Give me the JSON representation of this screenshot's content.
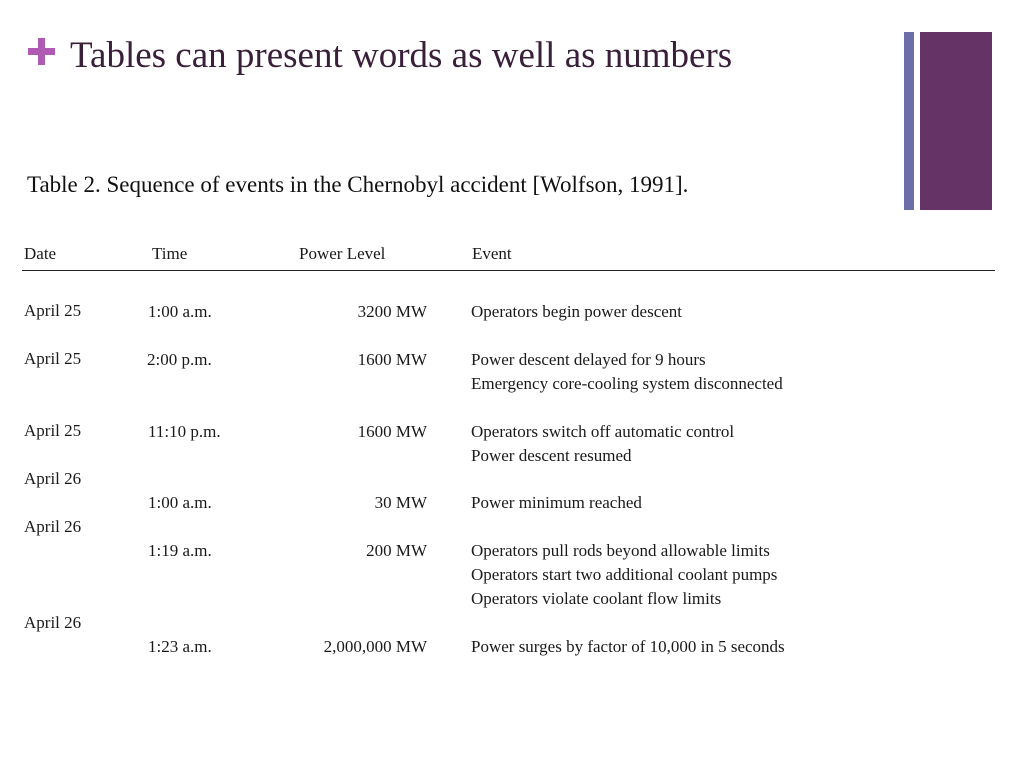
{
  "slide": {
    "title": "Tables can present words as well as numbers",
    "caption": "Table 2. Sequence of events in the Chernobyl accident [Wolfson, 1991]."
  },
  "table": {
    "headers": {
      "date": "Date",
      "time": "Time",
      "power": "Power Level",
      "event": "Event"
    },
    "cells": {
      "date": [
        "April 25",
        "April 25",
        "April 25",
        "April 26",
        "April 26",
        "April 26"
      ],
      "time": [
        "1:00 a.m.",
        "2:00 p.m.",
        "11:10 p.m.",
        "1:00 a.m.",
        "1:19 a.m.",
        "1:23 a.m."
      ],
      "power": [
        "3200 MW",
        "1600 MW",
        "1600 MW",
        "30 MW",
        "200 MW",
        "2,000,000 MW"
      ],
      "event": [
        "Operators begin power descent",
        "Power descent delayed for 9 hours",
        "Emergency core-cooling system disconnected",
        "Operators switch off automatic control",
        "Power descent resumed",
        "Power minimum reached",
        "Operators pull rods beyond allowable limits",
        "Operators start two additional coolant pumps",
        "Operators violate coolant flow limits",
        "Power surges by factor of 10,000 in 5 seconds"
      ]
    }
  },
  "colors": {
    "plus": "#b05ab4",
    "title": "#3a1f3a",
    "accent_bar": "#663366",
    "accent_line": "#6b6fa6"
  }
}
